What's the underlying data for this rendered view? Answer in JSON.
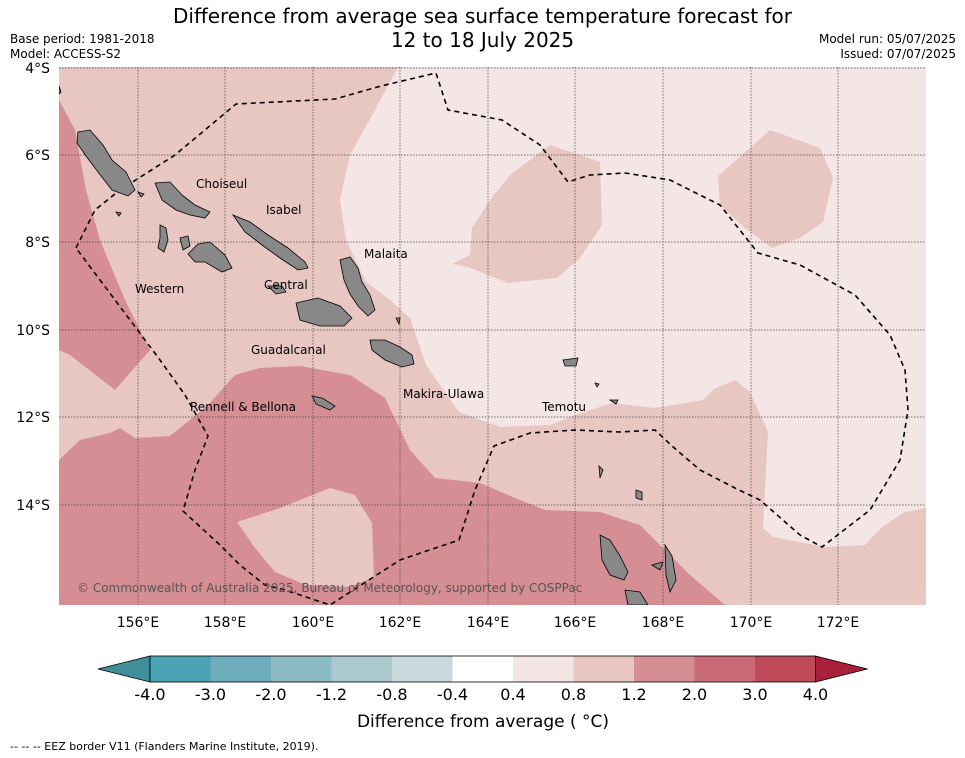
{
  "title_line1": "Difference from average sea surface temperature forecast for",
  "title_line2": "12 to 18 July 2025",
  "base_period": "Base period: 1981-2018",
  "model": "Model: ACCESS-S2",
  "model_run": "Model run: 05/07/2025",
  "issued": "Issued: 07/07/2025",
  "copyright": "© Commonwealth of Australia 2025, Bureau of Meteorology, supported by COSPPac",
  "footnote": "--  --  -- EEZ border V11 (Flanders Marine Institute, 2019).",
  "lat_labels": [
    "4°S",
    "6°S",
    "8°S",
    "10°S",
    "12°S",
    "14°S"
  ],
  "lon_labels": [
    "156°E",
    "158°E",
    "160°E",
    "162°E",
    "164°E",
    "166°E",
    "168°E",
    "170°E",
    "172°E"
  ],
  "map_extent": {
    "lon_min": 154.2,
    "lon_max": 174.0,
    "lat_min": -16.3,
    "lat_max": -4.0
  },
  "colorbar": {
    "title": "Difference from average ( °C)",
    "tick_labels": [
      "-4.0",
      "-3.0",
      "-2.0",
      "-1.2",
      "-0.8",
      "-0.4",
      "0.4",
      "0.8",
      "1.2",
      "2.0",
      "3.0",
      "4.0"
    ],
    "colors": [
      "#3f8e9a",
      "#4aa3b3",
      "#6eadbd",
      "#8cbac5",
      "#abc8cd",
      "#c9d9dc",
      "#ffffff",
      "#f4e6e5",
      "#e8c6c2",
      "#d68e95",
      "#c86b76",
      "#bf4a5a",
      "#a8203a"
    ]
  },
  "regions": [
    {
      "name": "Choiseul",
      "lon": 157.2,
      "lat": -6.7
    },
    {
      "name": "Isabel",
      "lon": 159.0,
      "lat": -7.3
    },
    {
      "name": "Malaita",
      "lon": 161.2,
      "lat": -8.3
    },
    {
      "name": "Western",
      "lon": 156.0,
      "lat": -9.1
    },
    {
      "name": "Central",
      "lon": 159.0,
      "lat": -8.9
    },
    {
      "name": "Guadalcanal",
      "lon": 159.1,
      "lat": -10.5
    },
    {
      "name": "Makira-Ulawa",
      "lon": 162.0,
      "lat": -11.5
    },
    {
      "name": "Rennell & Bellona",
      "lon": 157.1,
      "lat": -11.8
    },
    {
      "name": "Temotu",
      "lon": 165.3,
      "lat": -11.8
    }
  ]
}
